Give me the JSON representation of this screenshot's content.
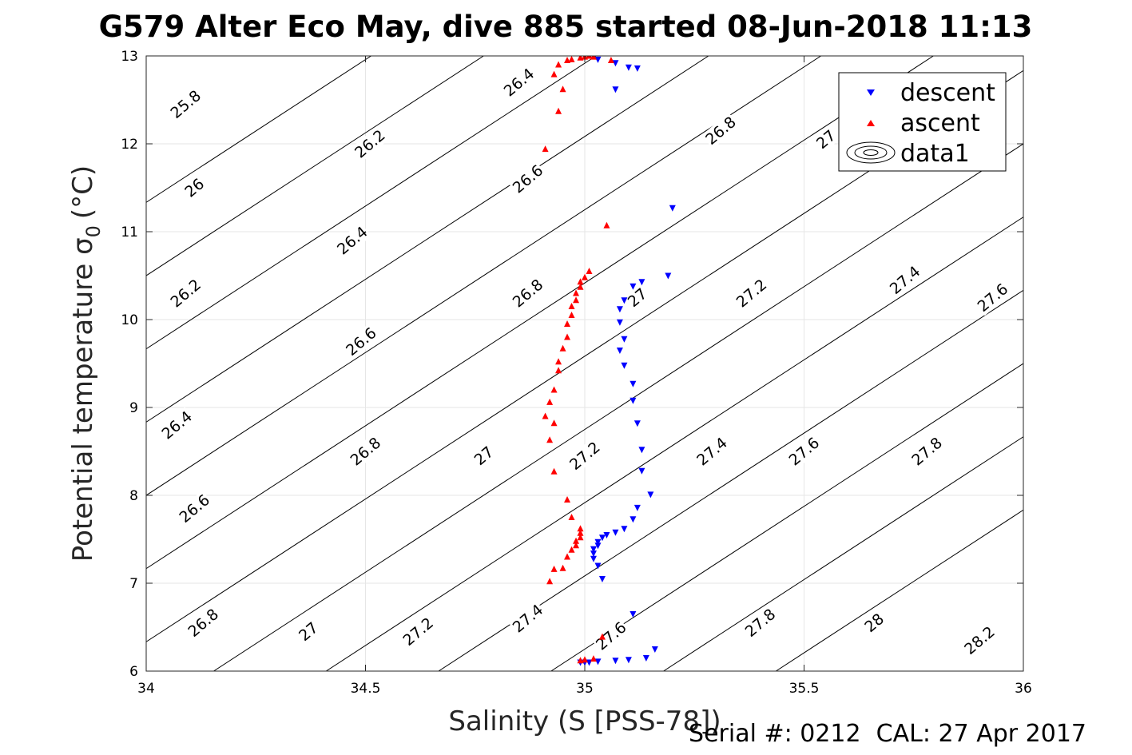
{
  "chart_data": {
    "type": "scatter",
    "title": "G579 Alter Eco May, dive 885 started 08-Jun-2018 11:13",
    "xlabel": "Salinity (S [PSS-78])",
    "ylabel": "Potential temperature σ",
    "ylabel_subscript": "0",
    "ylabel_unit": "(°C)",
    "xlim": [
      34,
      36
    ],
    "ylim": [
      6,
      13
    ],
    "grid": true,
    "xticks": [
      "34",
      "34.5",
      "35",
      "35.5",
      "36"
    ],
    "yticks": [
      "6",
      "7",
      "8",
      "9",
      "10",
      "11",
      "12",
      "13"
    ],
    "legend_position": "top-right",
    "legend": [
      "descent",
      "ascent",
      "data1"
    ],
    "footer": "Serial #: 0212  CAL: 27 Apr 2017",
    "contours": [
      25.8,
      26.0,
      26.2,
      26.4,
      26.6,
      26.8,
      27.0,
      27.2,
      27.4,
      27.6,
      27.8,
      28.0,
      28.2
    ],
    "contour_labels": [
      {
        "text": "25.8",
        "x": 34.09,
        "y": 12.45
      },
      {
        "text": "26",
        "x": 34.11,
        "y": 11.5
      },
      {
        "text": "26.2",
        "x": 34.09,
        "y": 10.3
      },
      {
        "text": "26.4",
        "x": 34.07,
        "y": 8.8
      },
      {
        "text": "26.6",
        "x": 34.11,
        "y": 7.85
      },
      {
        "text": "26.8",
        "x": 34.13,
        "y": 6.55
      },
      {
        "text": "26.2",
        "x": 34.51,
        "y": 12.0
      },
      {
        "text": "26.4",
        "x": 34.47,
        "y": 10.9
      },
      {
        "text": "26.6",
        "x": 34.49,
        "y": 9.75
      },
      {
        "text": "26.8",
        "x": 34.5,
        "y": 8.5
      },
      {
        "text": "27",
        "x": 34.37,
        "y": 6.45
      },
      {
        "text": "27",
        "x": 34.77,
        "y": 8.45
      },
      {
        "text": "27.2",
        "x": 34.62,
        "y": 6.45
      },
      {
        "text": "26.4",
        "x": 34.85,
        "y": 12.7
      },
      {
        "text": "26.6",
        "x": 34.87,
        "y": 11.6
      },
      {
        "text": "26.8",
        "x": 34.87,
        "y": 10.3
      },
      {
        "text": "27.2",
        "x": 35.0,
        "y": 8.45
      },
      {
        "text": "27.4",
        "x": 34.87,
        "y": 6.6
      },
      {
        "text": "27",
        "x": 35.12,
        "y": 10.25
      },
      {
        "text": "26.8",
        "x": 35.31,
        "y": 12.15
      },
      {
        "text": "27.2",
        "x": 35.38,
        "y": 10.3
      },
      {
        "text": "27.4",
        "x": 35.29,
        "y": 8.5
      },
      {
        "text": "27.6",
        "x": 35.06,
        "y": 6.4
      },
      {
        "text": "27",
        "x": 35.55,
        "y": 12.05
      },
      {
        "text": "27.4",
        "x": 35.73,
        "y": 10.45
      },
      {
        "text": "27.6",
        "x": 35.5,
        "y": 8.5
      },
      {
        "text": "27.8",
        "x": 35.4,
        "y": 6.55
      },
      {
        "text": "27.6",
        "x": 35.93,
        "y": 10.25
      },
      {
        "text": "27.8",
        "x": 35.78,
        "y": 8.5
      },
      {
        "text": "28",
        "x": 35.66,
        "y": 6.55
      },
      {
        "text": "28.2",
        "x": 35.9,
        "y": 6.35
      }
    ],
    "series": [
      {
        "name": "descent",
        "color": "#0000ff",
        "marker": "triangle-down",
        "points": [
          [
            35.03,
            12.96
          ],
          [
            35.07,
            12.92
          ],
          [
            35.1,
            12.87
          ],
          [
            35.12,
            12.86
          ],
          [
            35.07,
            12.62
          ],
          [
            35.2,
            11.27
          ],
          [
            35.19,
            10.5
          ],
          [
            35.13,
            10.43
          ],
          [
            35.11,
            10.38
          ],
          [
            35.09,
            10.22
          ],
          [
            35.08,
            10.12
          ],
          [
            35.08,
            9.97
          ],
          [
            35.09,
            9.78
          ],
          [
            35.08,
            9.65
          ],
          [
            35.09,
            9.48
          ],
          [
            35.11,
            9.27
          ],
          [
            35.11,
            9.08
          ],
          [
            35.12,
            8.82
          ],
          [
            35.13,
            8.52
          ],
          [
            35.13,
            8.28
          ],
          [
            35.15,
            8.01
          ],
          [
            35.12,
            7.86
          ],
          [
            35.11,
            7.73
          ],
          [
            35.09,
            7.62
          ],
          [
            35.07,
            7.58
          ],
          [
            35.05,
            7.55
          ],
          [
            35.04,
            7.52
          ],
          [
            35.03,
            7.47
          ],
          [
            35.03,
            7.43
          ],
          [
            35.02,
            7.39
          ],
          [
            35.02,
            7.34
          ],
          [
            35.02,
            7.28
          ],
          [
            35.03,
            7.2
          ],
          [
            35.04,
            7.05
          ],
          [
            35.11,
            6.65
          ],
          [
            35.16,
            6.25
          ],
          [
            35.14,
            6.15
          ],
          [
            35.1,
            6.13
          ],
          [
            35.07,
            6.12
          ],
          [
            35.03,
            6.11
          ],
          [
            35.01,
            6.1
          ],
          [
            35.0,
            6.1
          ],
          [
            34.99,
            6.1
          ]
        ]
      },
      {
        "name": "ascent",
        "color": "#ff0000",
        "marker": "triangle-up",
        "points": [
          [
            34.99,
            6.12
          ],
          [
            35.0,
            6.13
          ],
          [
            35.02,
            6.14
          ],
          [
            35.04,
            6.39
          ],
          [
            34.92,
            7.02
          ],
          [
            34.93,
            7.16
          ],
          [
            34.95,
            7.17
          ],
          [
            34.96,
            7.3
          ],
          [
            34.97,
            7.38
          ],
          [
            34.98,
            7.43
          ],
          [
            34.98,
            7.48
          ],
          [
            34.99,
            7.52
          ],
          [
            34.99,
            7.57
          ],
          [
            34.99,
            7.62
          ],
          [
            34.97,
            7.75
          ],
          [
            34.96,
            7.95
          ],
          [
            34.93,
            8.27
          ],
          [
            34.92,
            8.63
          ],
          [
            34.93,
            8.82
          ],
          [
            34.91,
            8.9
          ],
          [
            34.92,
            9.06
          ],
          [
            34.93,
            9.2
          ],
          [
            34.94,
            9.42
          ],
          [
            34.94,
            9.52
          ],
          [
            34.95,
            9.67
          ],
          [
            34.96,
            9.8
          ],
          [
            34.96,
            9.95
          ],
          [
            34.97,
            10.05
          ],
          [
            34.97,
            10.15
          ],
          [
            34.98,
            10.22
          ],
          [
            34.98,
            10.3
          ],
          [
            34.99,
            10.37
          ],
          [
            34.99,
            10.43
          ],
          [
            35.0,
            10.48
          ],
          [
            35.01,
            10.55
          ],
          [
            35.05,
            11.07
          ],
          [
            34.91,
            11.94
          ],
          [
            34.94,
            12.37
          ],
          [
            34.95,
            12.62
          ],
          [
            34.93,
            12.79
          ],
          [
            34.94,
            12.9
          ],
          [
            34.96,
            12.95
          ],
          [
            34.97,
            12.96
          ],
          [
            34.99,
            12.98
          ],
          [
            35.0,
            12.99
          ],
          [
            35.01,
            13.0
          ],
          [
            35.02,
            12.99
          ],
          [
            35.06,
            12.95
          ]
        ]
      }
    ]
  }
}
